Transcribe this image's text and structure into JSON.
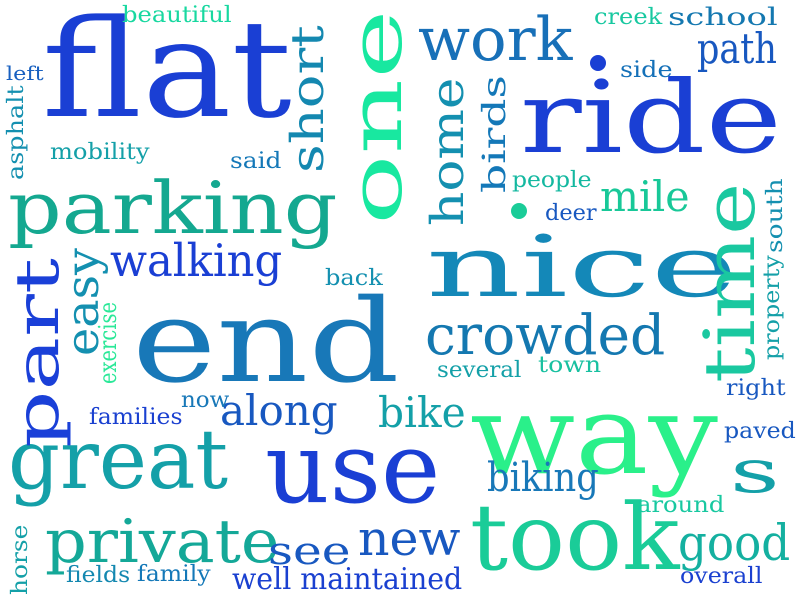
{
  "words": [
    {
      "text": "flat",
      "color": "#1a3fd4"
    },
    {
      "text": "ride",
      "color": "#1a3fd4"
    },
    {
      "text": "one",
      "color": "#18e8a0"
    },
    {
      "text": "nice",
      "color": "#1488b8"
    },
    {
      "text": "end",
      "color": "#1878b8"
    },
    {
      "text": "way",
      "color": "#2af08a"
    },
    {
      "text": "parking",
      "color": "#14a890"
    },
    {
      "text": "use",
      "color": "#1a3fd4"
    },
    {
      "text": "great",
      "color": "#14a0a8"
    },
    {
      "text": "took",
      "color": "#1acc98"
    },
    {
      "text": "part",
      "color": "#1a40d8"
    },
    {
      "text": "time",
      "color": "#1ac8a0"
    },
    {
      "text": "private",
      "color": "#14a898"
    },
    {
      "text": "crowded",
      "color": "#1478b0"
    },
    {
      "text": "work",
      "color": "#1870b8"
    },
    {
      "text": "short",
      "color": "#1488b0"
    },
    {
      "text": "home",
      "color": "#1490b0"
    },
    {
      "text": "walking",
      "color": "#1a3fd4"
    },
    {
      "text": "along",
      "color": "#1858c0"
    },
    {
      "text": "biking",
      "color": "#1878b8"
    },
    {
      "text": "new",
      "color": "#1858c0"
    },
    {
      "text": "path",
      "color": "#1858c0"
    },
    {
      "text": "mile",
      "color": "#18c898"
    },
    {
      "text": "bike",
      "color": "#14a0a8"
    },
    {
      "text": "see",
      "color": "#1858c0"
    },
    {
      "text": "good",
      "color": "#14b0a0"
    },
    {
      "text": "s",
      "color": "#14a0a8"
    },
    {
      "text": "birds",
      "color": "#1478b8"
    },
    {
      "text": "easy",
      "color": "#1490b0"
    },
    {
      "text": "well maintained",
      "color": "#1a40d0"
    },
    {
      "text": "beautiful",
      "color": "#18d8a0"
    },
    {
      "text": "creek",
      "color": "#18c8a0"
    },
    {
      "text": "school",
      "color": "#1478b0"
    },
    {
      "text": "left",
      "color": "#1860c0"
    },
    {
      "text": "side",
      "color": "#1470b8"
    },
    {
      "text": "asphalt",
      "color": "#1490b0"
    },
    {
      "text": "mobility",
      "color": "#14a0a8"
    },
    {
      "text": "said",
      "color": "#1478b8"
    },
    {
      "text": "people",
      "color": "#14b8a0"
    },
    {
      "text": "deer",
      "color": "#1858c0"
    },
    {
      "text": "south",
      "color": "#1490b0"
    },
    {
      "text": "property",
      "color": "#14a0a8"
    },
    {
      "text": "back",
      "color": "#1490b0"
    },
    {
      "text": "exercise",
      "color": "#2ae898"
    },
    {
      "text": "several",
      "color": "#14a0a8"
    },
    {
      "text": "town",
      "color": "#18c0a0"
    },
    {
      "text": "now",
      "color": "#1878b8"
    },
    {
      "text": "families",
      "color": "#1a40d0"
    },
    {
      "text": "right",
      "color": "#1858c0"
    },
    {
      "text": "paved",
      "color": "#1858c0"
    },
    {
      "text": "around",
      "color": "#18c8a0"
    },
    {
      "text": "horse",
      "color": "#14a0a8"
    },
    {
      "text": "fields",
      "color": "#1488b0"
    },
    {
      "text": "family",
      "color": "#1478b8"
    },
    {
      "text": "overall",
      "color": "#1a40d0"
    }
  ]
}
